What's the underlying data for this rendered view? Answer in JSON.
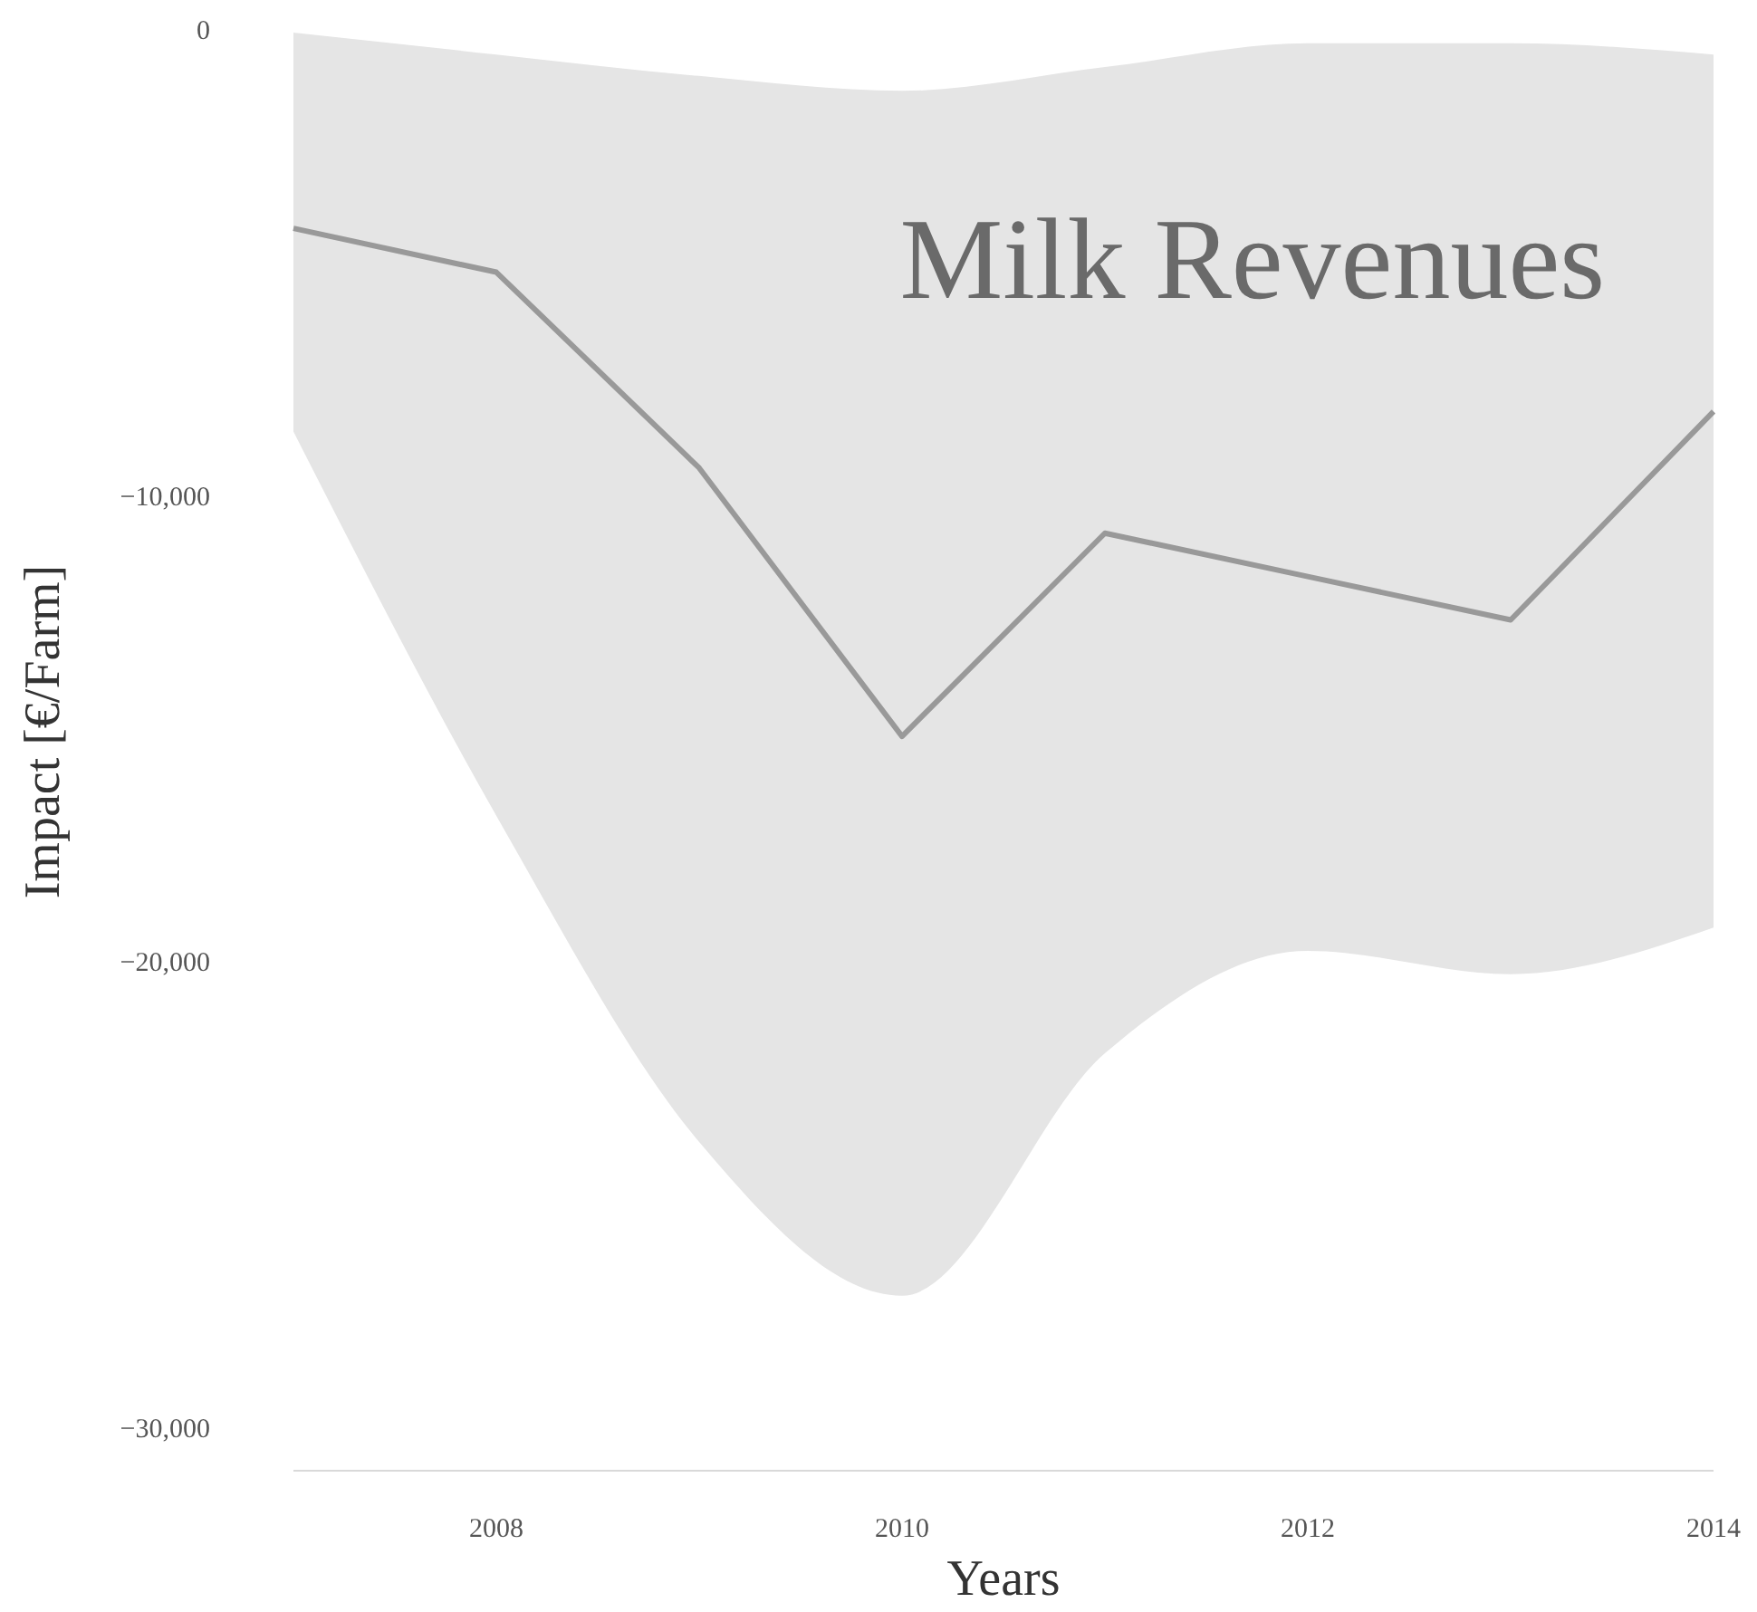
{
  "chart_data": {
    "type": "line",
    "xlabel": "Years",
    "ylabel": "Impact [€/Farm]",
    "annotations": [
      "Milk Revenues"
    ],
    "x": [
      2007,
      2008,
      2009,
      2010,
      2011,
      2012,
      2013,
      2014
    ],
    "series": [
      {
        "color": "#999999",
        "values": [
          -4200,
          -5140,
          -9340,
          -15100,
          -10740,
          -11670,
          -12600,
          -8130
        ],
        "lower": [
          -8560,
          -16800,
          -23800,
          -27100,
          -21900,
          -19700,
          -20200,
          -19200
        ],
        "upper": [
          0,
          -470,
          -930,
          -1250,
          -740,
          -230,
          -230,
          -470
        ]
      }
    ],
    "xlim": [
      2007,
      2014
    ],
    "xticks": [
      2008,
      2010,
      2012,
      2014
    ],
    "ylim": [
      -30000,
      0
    ],
    "yticks": [
      0,
      {
        "value": -10000,
        "label": "−10,000"
      },
      {
        "value": -20000,
        "label": "−20,000"
      },
      {
        "value": -30000,
        "label": "−30,000"
      }
    ],
    "grid": false,
    "marker": "none",
    "line_style": "solid"
  }
}
